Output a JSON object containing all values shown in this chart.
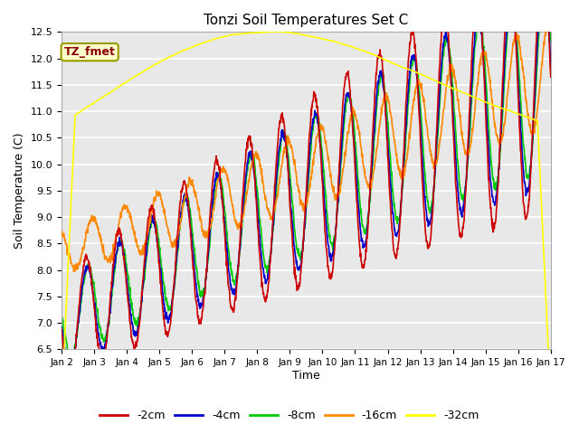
{
  "title": "Tonzi Soil Temperatures Set C",
  "xlabel": "Time",
  "ylabel": "Soil Temperature (C)",
  "ylim": [
    6.5,
    12.5
  ],
  "xlim": [
    0,
    15
  ],
  "x_tick_labels": [
    "Jan 2",
    "Jan 3",
    "Jan 4",
    "Jan 5",
    "Jan 6",
    "Jan 7",
    "Jan 8",
    "Jan 9",
    "Jan 10",
    "Jan 11",
    "Jan 12",
    "Jan 13",
    "Jan 14",
    "Jan 15",
    "Jan 16",
    "Jan 17"
  ],
  "series_colors": {
    "-2cm": "#cc0000",
    "-4cm": "#0000cc",
    "-8cm": "#00cc00",
    "-16cm": "#ff8800",
    "-32cm": "#ffff00"
  },
  "legend_label": "TZ_fmet",
  "legend_label_color": "#8b0000",
  "legend_box_facecolor": "#ffffcc",
  "legend_box_edgecolor": "#999900",
  "plot_bg_color": "#e8e8e8",
  "grid_color": "#ffffff",
  "lw": 1.2
}
